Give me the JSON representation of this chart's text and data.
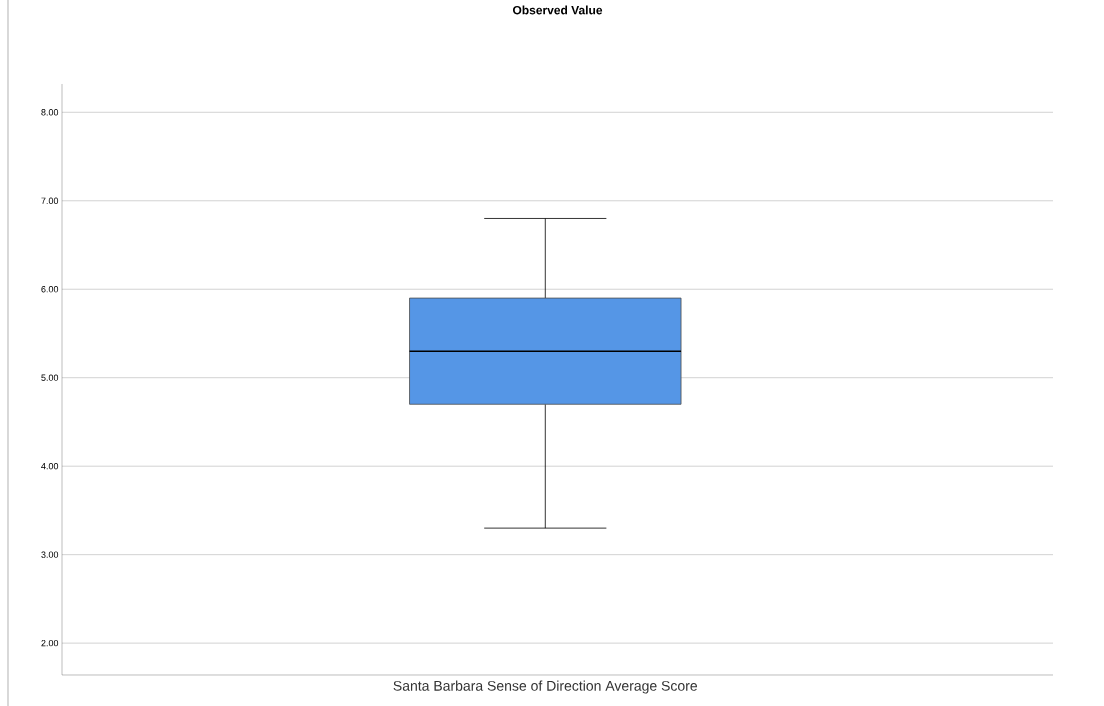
{
  "chart_data": {
    "type": "box",
    "title": "Observed Value",
    "categories": [
      "Santa Barbara Sense of Direction Average Score"
    ],
    "series": [
      {
        "color": "#5596e6",
        "boxes": [
          {
            "low": 3.3,
            "q1": 4.7,
            "median": 5.3,
            "q3": 5.9,
            "high": 6.8
          }
        ]
      }
    ],
    "ylim": [
      1.64,
      8.32
    ],
    "yticks": [
      {
        "value": 2,
        "label": "2.00"
      },
      {
        "value": 3,
        "label": "3.00"
      },
      {
        "value": 4,
        "label": "4.00"
      },
      {
        "value": 5,
        "label": "5.00"
      },
      {
        "value": 6,
        "label": "6.00"
      },
      {
        "value": 7,
        "label": "7.00"
      },
      {
        "value": 8,
        "label": "8.00"
      }
    ],
    "grid": "y"
  }
}
